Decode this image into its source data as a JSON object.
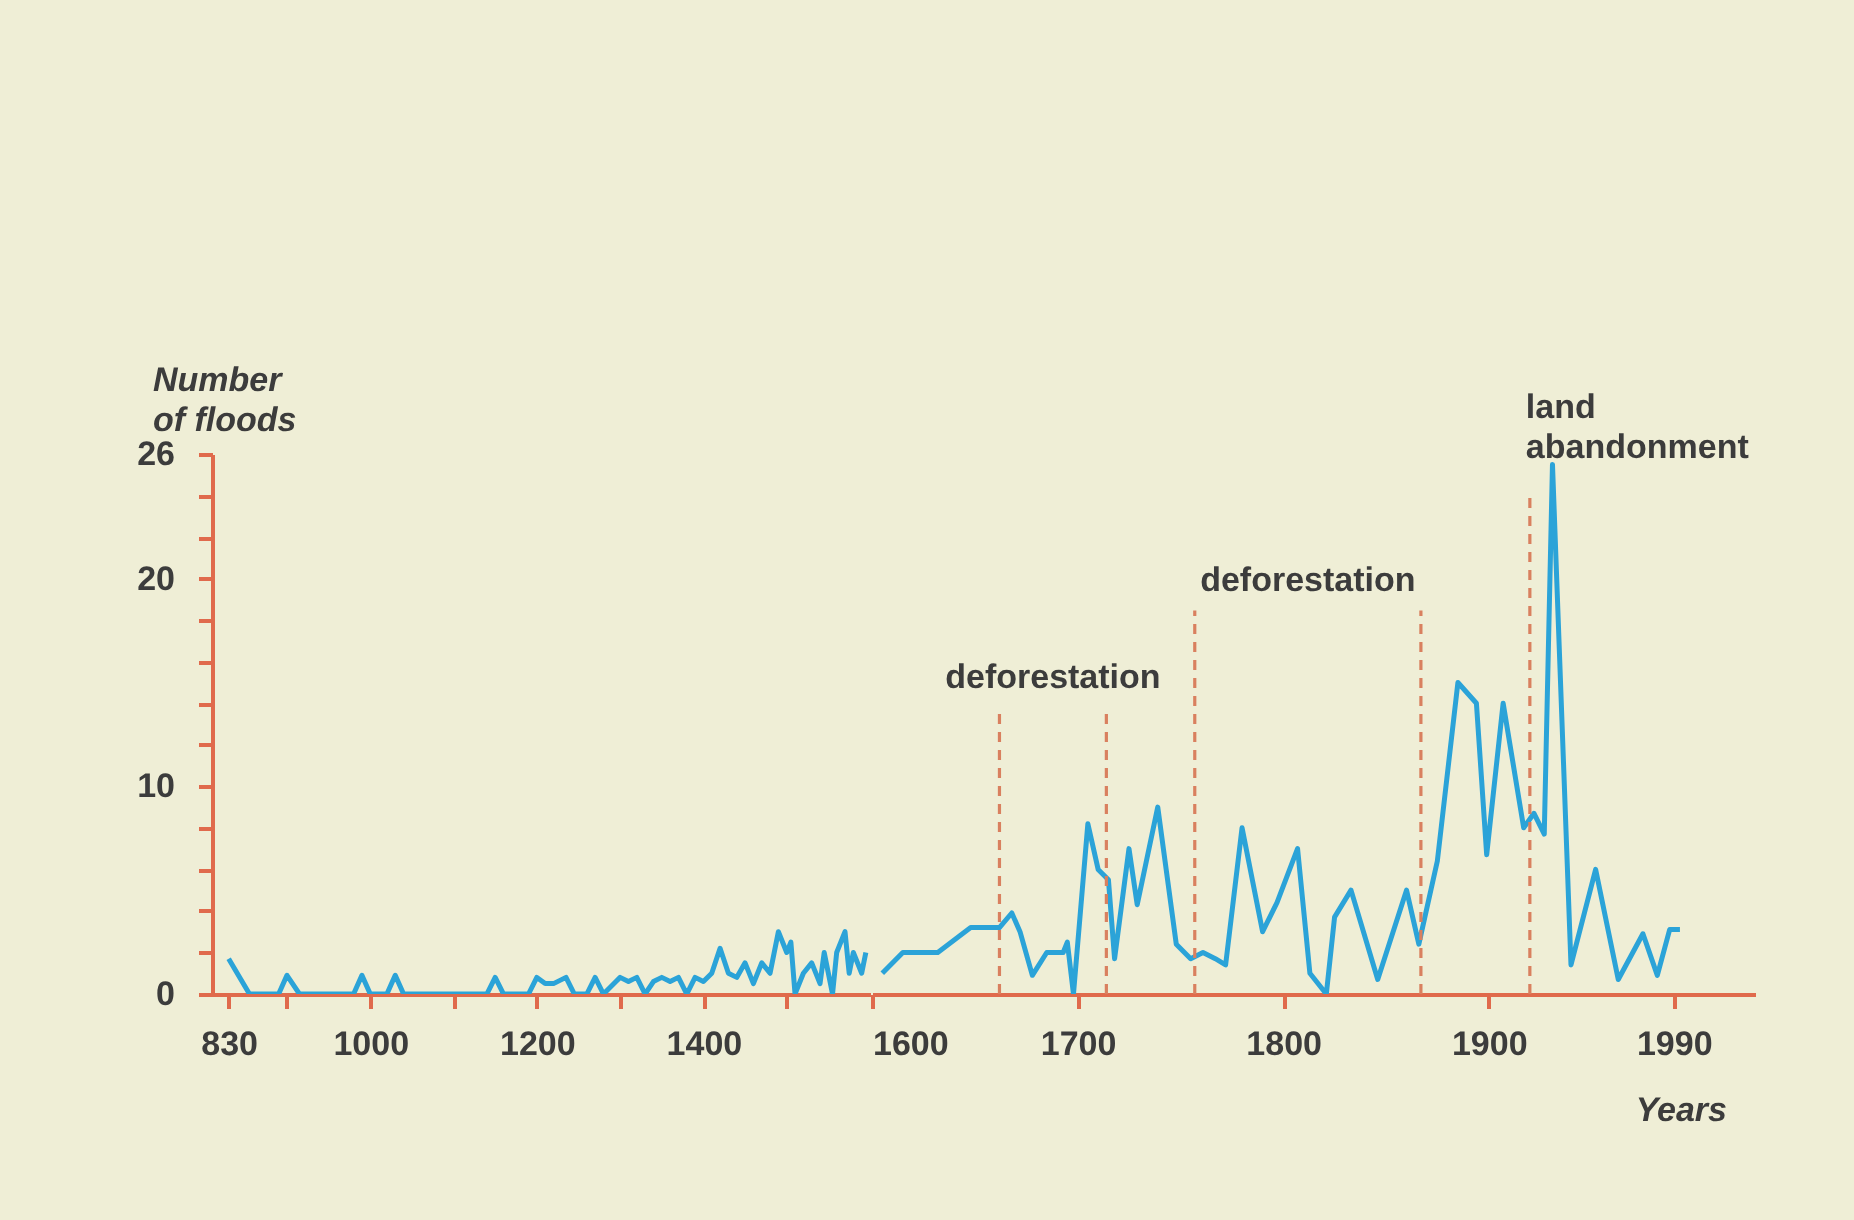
{
  "chart_data": [
    {
      "type": "line",
      "ylabel": "Number of floods",
      "x": [
        830,
        855,
        890,
        900,
        915,
        980,
        990,
        1000,
        1020,
        1030,
        1040,
        1140,
        1150,
        1160,
        1190,
        1200,
        1210,
        1220,
        1235,
        1245,
        1260,
        1270,
        1280,
        1295,
        1300,
        1310,
        1320,
        1330,
        1340,
        1350,
        1360,
        1370,
        1380,
        1390,
        1400,
        1410,
        1420,
        1430,
        1440,
        1450,
        1460,
        1470,
        1480,
        1490,
        1500,
        1505,
        1510,
        1520,
        1530,
        1540,
        1545,
        1555,
        1560,
        1570,
        1575,
        1580,
        1590,
        1595
      ],
      "series": [
        {
          "color": "#2ba3d8",
          "values": [
            1.7,
            0,
            0,
            0.9,
            0,
            0,
            0.9,
            0,
            0,
            0.9,
            0,
            0,
            0.8,
            0,
            0,
            0.8,
            0.5,
            0.5,
            0.8,
            0,
            0,
            0.8,
            0,
            0.6,
            0.8,
            0.6,
            0.8,
            0,
            0.6,
            0.8,
            0.6,
            0.8,
            0,
            0.8,
            0.6,
            1,
            2.2,
            1,
            0.8,
            1.5,
            0.5,
            1.5,
            1,
            3,
            2,
            2.5,
            0,
            1,
            1.5,
            0.5,
            2,
            0,
            2,
            3,
            1,
            2,
            1,
            2
          ]
        }
      ],
      "xlim": [
        810,
        1600
      ],
      "xticks": [
        830,
        {
          "value": 900,
          "label": null
        },
        1000,
        {
          "value": 1100,
          "label": null
        },
        1200,
        {
          "value": 1300,
          "label": null
        },
        1400,
        {
          "value": 1500,
          "label": null
        }
      ],
      "ylim": [
        0,
        26
      ],
      "yticks": [
        0,
        {
          "value": 2,
          "label": null
        },
        {
          "value": 4,
          "label": null
        },
        {
          "value": 6,
          "label": null
        },
        {
          "value": 8,
          "label": null
        },
        10,
        {
          "value": 12,
          "label": null
        },
        {
          "value": 14,
          "label": null
        },
        {
          "value": 16,
          "label": null
        },
        {
          "value": 18,
          "label": null
        },
        20,
        {
          "value": 22,
          "label": null
        },
        {
          "value": 24,
          "label": null
        },
        26
      ],
      "grid": false,
      "legend": false,
      "marker": "none",
      "line_style": "solid"
    },
    {
      "type": "line",
      "xlabel": "Years",
      "x": [
        1605,
        1615,
        1632,
        1648,
        1662,
        1668,
        1672,
        1678,
        1685,
        1693,
        1695,
        1698,
        1705,
        1710,
        1715,
        1718,
        1725,
        1729,
        1739,
        1748,
        1755,
        1761,
        1767,
        1772,
        1780,
        1790,
        1797,
        1807,
        1813,
        1821,
        1825,
        1833,
        1846,
        1860,
        1866,
        1875,
        1885,
        1894,
        1899,
        1907,
        1917,
        1922,
        1927,
        1931,
        1940,
        1952,
        1963,
        1975,
        1982,
        1988,
        1993
      ],
      "series": [
        {
          "color": "#2ba3d8",
          "values": [
            1,
            2,
            2,
            3.2,
            3.2,
            3.9,
            3,
            0.9,
            2,
            2,
            2.5,
            0,
            8.2,
            6,
            5.5,
            1.7,
            7,
            4.3,
            9,
            2.4,
            1.7,
            2,
            1.7,
            1.4,
            8,
            3,
            4.4,
            7,
            1,
            0,
            3.7,
            5,
            0.7,
            5,
            2.4,
            6.4,
            15,
            14,
            6.7,
            14,
            8,
            8.7,
            7.7,
            25.5,
            1.4,
            6,
            0.7,
            2.9,
            0.9,
            3.1,
            3.1
          ]
        }
      ],
      "xlim": [
        1600,
        2030
      ],
      "xticks": [
        1600,
        1700,
        1800,
        1900,
        1990
      ],
      "ylim": [
        0,
        26
      ],
      "tick_labels": "x",
      "ref_lines": [
        {
          "axis": "x",
          "value": 1662,
          "color": "#d9805f",
          "line_style": "dashed",
          "label": "deforestation"
        },
        {
          "axis": "x",
          "value": 1714,
          "color": "#d9805f",
          "line_style": "dashed"
        },
        {
          "axis": "x",
          "value": 1757,
          "color": "#d9805f",
          "line_style": "dashed",
          "label": "deforestation"
        },
        {
          "axis": "x",
          "value": 1867,
          "color": "#d9805f",
          "line_style": "dashed"
        },
        {
          "axis": "x",
          "value": 1920,
          "color": "#d9805f",
          "line_style": "dashed",
          "label": "land abandonment"
        }
      ],
      "grid": false,
      "legend": false,
      "marker": "none",
      "line_style": "solid"
    }
  ]
}
